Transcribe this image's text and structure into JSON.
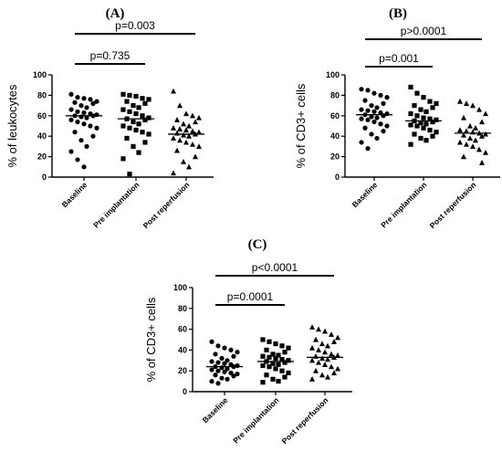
{
  "chart_data": [
    {
      "type": "scatter",
      "panel": "(A)",
      "ylabel": "% of leukocytes",
      "ylim": [
        0,
        100
      ],
      "yticks": [
        "0",
        "20",
        "40",
        "60",
        "80",
        "100"
      ],
      "categories": [
        "Baseline",
        "Pre implantation",
        "Post reperfusion"
      ],
      "markers": [
        "circle",
        "square",
        "triangle"
      ],
      "comparisons": [
        {
          "from": 0,
          "to": 1,
          "label": "p=0.735"
        },
        {
          "from": 0,
          "to": 2,
          "label": "p=0.003"
        }
      ],
      "series": [
        {
          "median": 60,
          "values": [
            81,
            78,
            77,
            76,
            74,
            73,
            72,
            70,
            68,
            66,
            64,
            63,
            62,
            61,
            60,
            60,
            59,
            58,
            56,
            54,
            52,
            50,
            48,
            44,
            40,
            36,
            30,
            25,
            17,
            10
          ]
        },
        {
          "median": 57,
          "values": [
            81,
            80,
            79,
            77,
            76,
            74,
            72,
            70,
            68,
            66,
            64,
            62,
            60,
            58,
            57,
            56,
            54,
            52,
            50,
            48,
            46,
            44,
            42,
            38,
            34,
            30,
            24,
            18,
            3
          ]
        },
        {
          "median": 42,
          "values": [
            84,
            70,
            62,
            60,
            58,
            56,
            54,
            52,
            50,
            48,
            47,
            46,
            45,
            44,
            43,
            42,
            41,
            40,
            38,
            36,
            34,
            32,
            30,
            26,
            20,
            15,
            10,
            4
          ]
        }
      ]
    },
    {
      "type": "scatter",
      "panel": "(B)",
      "ylabel": "% of CD3+ cells",
      "ylim": [
        0,
        100
      ],
      "yticks": [
        "0",
        "20",
        "40",
        "60",
        "80",
        "100"
      ],
      "categories": [
        "Baseline",
        "Pre implantation",
        "Post reperfusion"
      ],
      "markers": [
        "circle",
        "square",
        "triangle"
      ],
      "comparisons": [
        {
          "from": 0,
          "to": 1,
          "label": "p=0.001"
        },
        {
          "from": 0,
          "to": 2,
          "label": "p>0.0001"
        }
      ],
      "series": [
        {
          "median": 61,
          "values": [
            86,
            85,
            82,
            80,
            78,
            75,
            72,
            70,
            68,
            66,
            65,
            64,
            63,
            62,
            61,
            60,
            59,
            58,
            57,
            56,
            54,
            52,
            50,
            48,
            45,
            42,
            38,
            34,
            28
          ]
        },
        {
          "median": 55,
          "values": [
            88,
            82,
            78,
            74,
            72,
            70,
            68,
            66,
            64,
            62,
            60,
            58,
            57,
            56,
            55,
            54,
            53,
            52,
            51,
            50,
            48,
            46,
            44,
            42,
            40,
            38,
            36,
            32
          ]
        },
        {
          "median": 43,
          "values": [
            74,
            72,
            70,
            66,
            62,
            58,
            54,
            50,
            48,
            46,
            45,
            44,
            43,
            42,
            41,
            40,
            38,
            36,
            34,
            32,
            30,
            27,
            24,
            20,
            14
          ]
        }
      ]
    },
    {
      "type": "scatter",
      "panel": "(C)",
      "ylabel": "% of CD3+ cells",
      "ylim": [
        0,
        100
      ],
      "yticks": [
        "0",
        "20",
        "40",
        "60",
        "80",
        "100"
      ],
      "categories": [
        "Baseline",
        "Pre implantation",
        "Post reperfusion"
      ],
      "markers": [
        "circle",
        "square",
        "triangle"
      ],
      "comparisons": [
        {
          "from": 0,
          "to": 1,
          "label": "p=0.0001"
        },
        {
          "from": 0,
          "to": 2,
          "label": "p<0.0001"
        }
      ],
      "series": [
        {
          "median": 24,
          "values": [
            48,
            44,
            42,
            40,
            38,
            36,
            34,
            32,
            30,
            29,
            28,
            27,
            26,
            25,
            24,
            24,
            23,
            22,
            21,
            20,
            19,
            18,
            17,
            16,
            15,
            13,
            12,
            10,
            8
          ]
        },
        {
          "median": 29,
          "values": [
            50,
            48,
            46,
            44,
            42,
            40,
            38,
            36,
            35,
            34,
            33,
            32,
            31,
            30,
            29,
            28,
            27,
            26,
            25,
            24,
            22,
            20,
            18,
            16,
            14,
            12,
            10,
            9
          ]
        },
        {
          "median": 33,
          "values": [
            62,
            60,
            58,
            55,
            52,
            50,
            48,
            46,
            44,
            42,
            40,
            38,
            36,
            35,
            34,
            33,
            32,
            31,
            30,
            28,
            26,
            24,
            22,
            20,
            18,
            16,
            14,
            12
          ]
        }
      ]
    }
  ]
}
